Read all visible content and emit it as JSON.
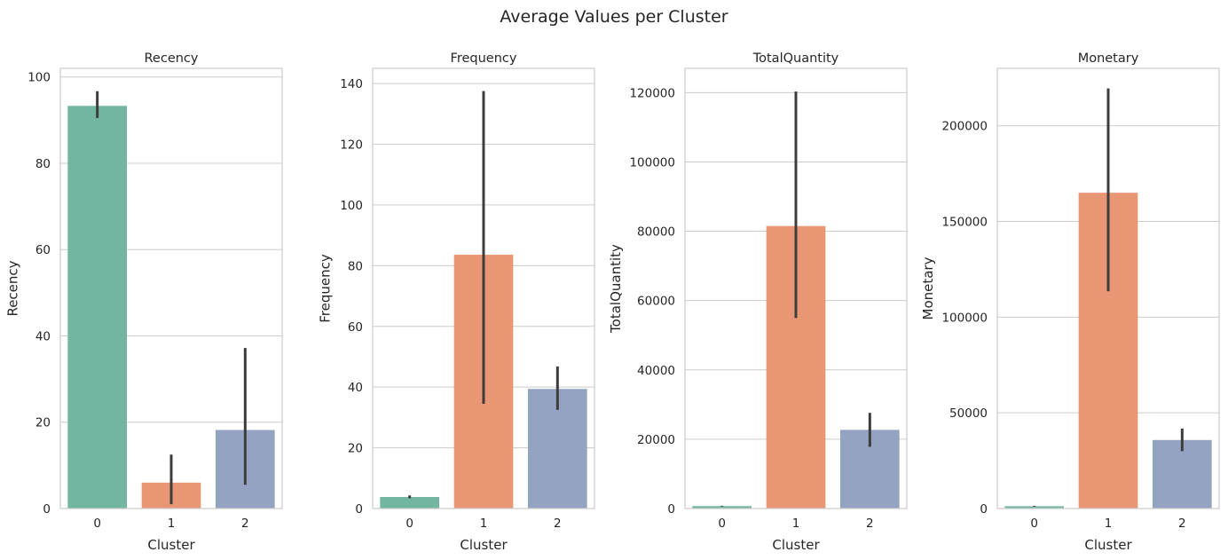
{
  "figure": {
    "title": "Average Values per Cluster"
  },
  "palette": [
    "#72b6a1",
    "#e99675",
    "#95a3c3"
  ],
  "chart_data": [
    {
      "type": "bar",
      "title": "Recency",
      "xlabel": "Cluster",
      "ylabel": "Recency",
      "categories": [
        "0",
        "1",
        "2"
      ],
      "values": [
        93.3,
        6.0,
        18.2
      ],
      "error_low": [
        90.5,
        1.0,
        5.5
      ],
      "error_high": [
        96.7,
        12.5,
        37.2
      ],
      "ylim": [
        0,
        102
      ],
      "yticks": [
        0,
        20,
        40,
        60,
        80,
        100
      ],
      "ytick_labels": [
        "0",
        "20",
        "40",
        "60",
        "80",
        "100"
      ],
      "grid": true
    },
    {
      "type": "bar",
      "title": "Frequency",
      "xlabel": "Cluster",
      "ylabel": "Frequency",
      "categories": [
        "0",
        "1",
        "2"
      ],
      "values": [
        3.8,
        83.6,
        39.4
      ],
      "error_low": [
        3.4,
        34.5,
        32.5
      ],
      "error_high": [
        4.3,
        137.5,
        46.8
      ],
      "ylim": [
        0,
        145
      ],
      "yticks": [
        0,
        20,
        40,
        60,
        80,
        100,
        120,
        140
      ],
      "ytick_labels": [
        "0",
        "20",
        "40",
        "60",
        "80",
        "100",
        "120",
        "140"
      ],
      "grid": true
    },
    {
      "type": "bar",
      "title": "TotalQuantity",
      "xlabel": "Cluster",
      "ylabel": "TotalQuantity",
      "categories": [
        "0",
        "1",
        "2"
      ],
      "values": [
        700,
        81500,
        22700
      ],
      "error_low": [
        600,
        55000,
        17800
      ],
      "error_high": [
        800,
        120300,
        27600
      ],
      "ylim": [
        0,
        127000
      ],
      "yticks": [
        0,
        20000,
        40000,
        60000,
        80000,
        100000,
        120000
      ],
      "ytick_labels": [
        "0",
        "20000",
        "40000",
        "60000",
        "80000",
        "100000",
        "120000"
      ],
      "grid": true
    },
    {
      "type": "bar",
      "title": "Monetary",
      "xlabel": "Cluster",
      "ylabel": "Monetary",
      "categories": [
        "0",
        "1",
        "2"
      ],
      "values": [
        1200,
        165000,
        35800
      ],
      "error_low": [
        1000,
        113500,
        30000
      ],
      "error_high": [
        1400,
        219500,
        41800
      ],
      "ylim": [
        0,
        230000
      ],
      "yticks": [
        0,
        50000,
        100000,
        150000,
        200000
      ],
      "ytick_labels": [
        "0",
        "50000",
        "100000",
        "150000",
        "200000"
      ],
      "grid": true
    }
  ]
}
